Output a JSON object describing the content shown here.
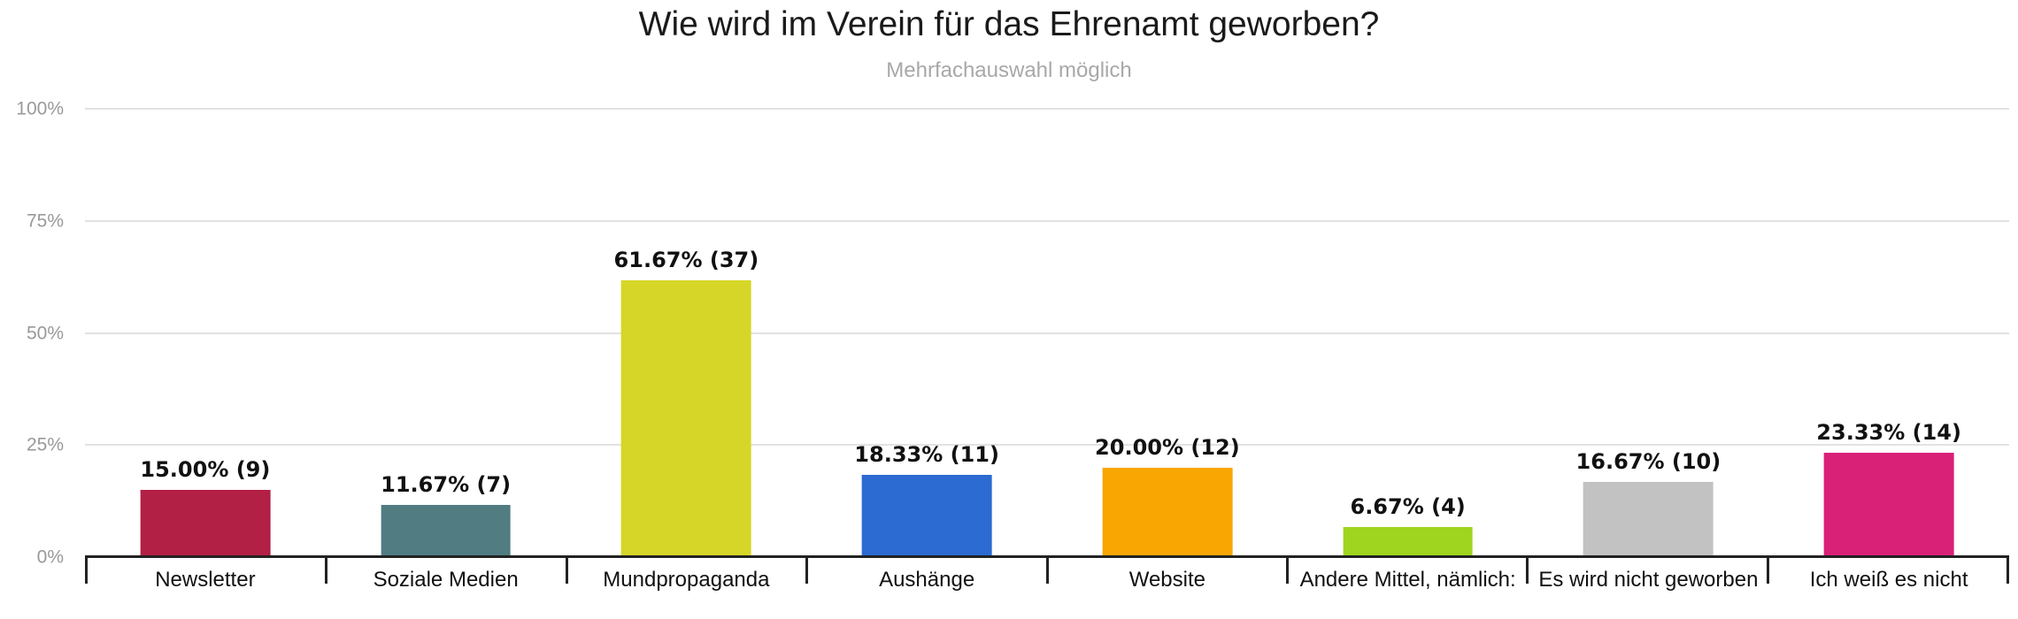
{
  "title": "Wie wird im Verein für das Ehrenamt geworben?",
  "subtitle": "Mehrfachauswahl möglich",
  "y_axis": {
    "tick_labels": [
      "0%",
      "25%",
      "50%",
      "75%",
      "100%"
    ]
  },
  "chart_data": {
    "type": "bar",
    "title": "Wie wird im Verein für das Ehrenamt geworben?",
    "subtitle": "Mehrfachauswahl möglich",
    "categories": [
      "Newsletter",
      "Soziale Medien",
      "Mundpropaganda",
      "Aushänge",
      "Website",
      "Andere Mittel, nämlich:",
      "Es wird nicht geworben",
      "Ich weiß es nicht"
    ],
    "values": [
      15.0,
      11.67,
      61.67,
      18.33,
      20.0,
      6.67,
      16.67,
      23.33
    ],
    "counts": [
      9,
      7,
      37,
      11,
      12,
      4,
      10,
      14
    ],
    "value_labels": [
      "15.00% (9)",
      "11.67% (7)",
      "61.67% (37)",
      "18.33% (11)",
      "20.00% (12)",
      "6.67% (4)",
      "16.67% (10)",
      "23.33% (14)"
    ],
    "bar_colors": [
      "#b32045",
      "#507c82",
      "#d6d628",
      "#2c6bd2",
      "#f9a602",
      "#9fd41f",
      "#c2c2c2",
      "#d92178"
    ],
    "xlabel": "",
    "ylabel": "",
    "ylim": [
      0,
      100
    ],
    "y_ticks_percent": [
      0,
      25,
      50,
      75,
      100
    ],
    "grid": true,
    "gridline_color": "#e2e2e2",
    "axis_color": "#222222",
    "legend": false
  }
}
